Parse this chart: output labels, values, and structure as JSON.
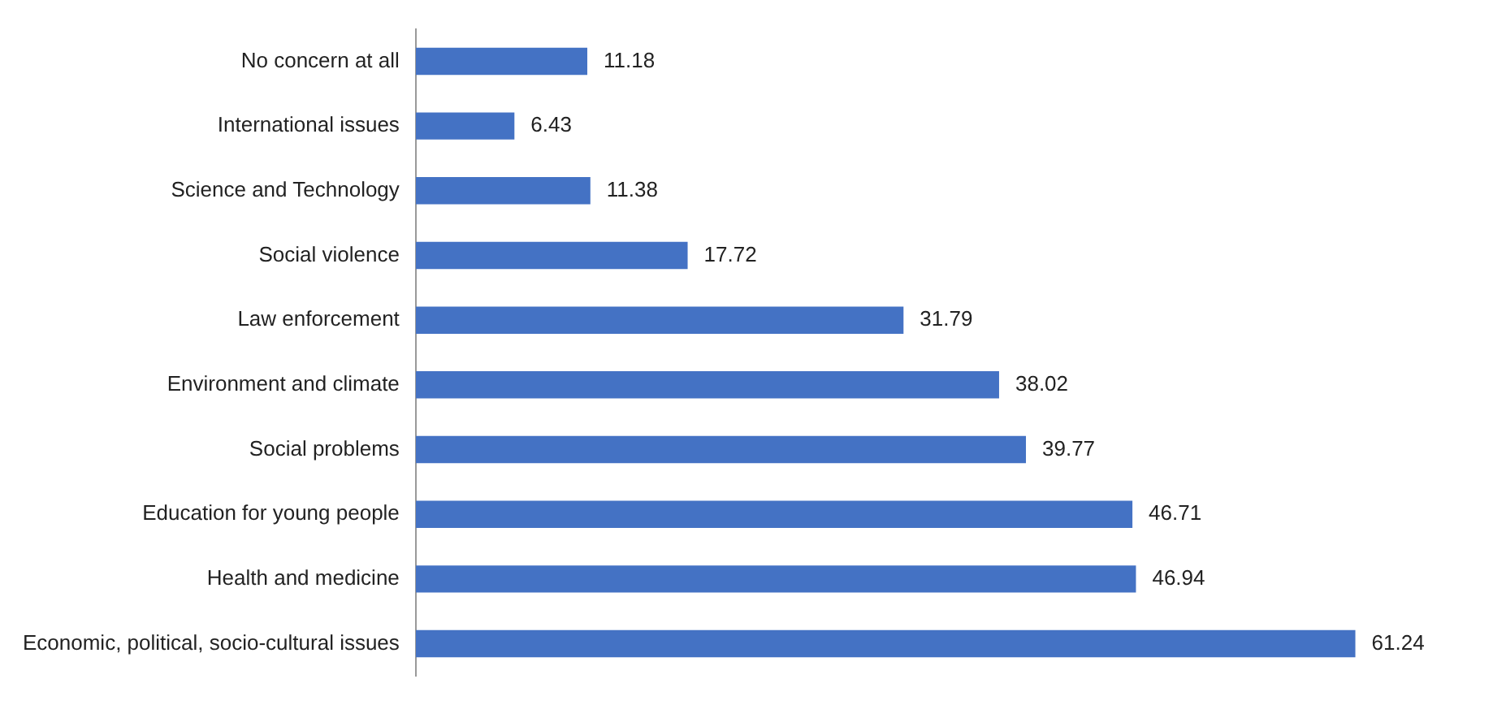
{
  "chart_data": {
    "type": "bar",
    "orientation": "horizontal",
    "categories": [
      "No concern at all",
      "International issues",
      "Science and Technology",
      "Social violence",
      "Law enforcement",
      "Environment and climate",
      "Social problems",
      "Education for young people",
      "Health and medicine",
      "Economic, political, socio-cultural issues"
    ],
    "values": [
      11.18,
      6.43,
      11.38,
      17.72,
      31.79,
      38.02,
      39.77,
      46.71,
      46.94,
      61.24
    ],
    "color": "#4472c4",
    "tick_labels": "y",
    "data_labels": true,
    "grid": false,
    "legend": false
  }
}
